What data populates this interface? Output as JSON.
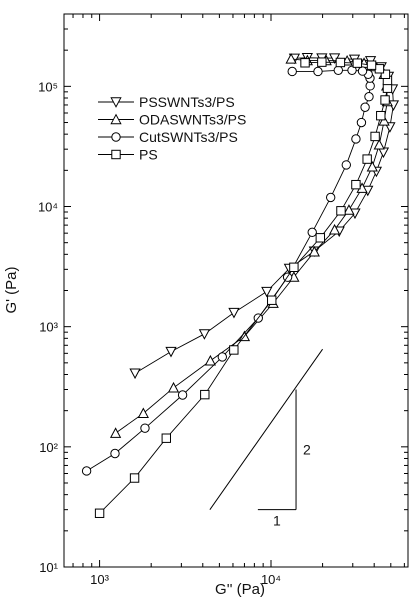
{
  "chart_data": {
    "type": "scatter",
    "xlabel": "G'' (Pa)",
    "ylabel": "G' (Pa)",
    "xscale": "log",
    "yscale": "log",
    "xlim": [
      620,
      63000
    ],
    "ylim": [
      10,
      400000
    ],
    "x_ticks": [
      {
        "value": 1000,
        "label": "10³"
      },
      {
        "value": 10000,
        "label": "10⁴"
      }
    ],
    "y_ticks": [
      {
        "value": 10,
        "label": "10¹"
      },
      {
        "value": 100,
        "label": "10²"
      },
      {
        "value": 1000,
        "label": "10³"
      },
      {
        "value": 10000,
        "label": "10⁴"
      },
      {
        "value": 100000,
        "label": "10⁵"
      }
    ],
    "legend_position": "top-left",
    "grid": false,
    "series": [
      {
        "name": "PSSWNTs3/PS",
        "marker": "triangle-down",
        "points": [
          [
            1610,
            410
          ],
          [
            2610,
            620
          ],
          [
            4090,
            870
          ],
          [
            6080,
            1310
          ],
          [
            9450,
            1960
          ],
          [
            12800,
            3050
          ],
          [
            17900,
            4250
          ],
          [
            25000,
            6230
          ],
          [
            30900,
            8790
          ],
          [
            36700,
            13600
          ],
          [
            41200,
            19600
          ],
          [
            45300,
            28300
          ],
          [
            49400,
            45900
          ],
          [
            51800,
            69800
          ],
          [
            51200,
            95000
          ],
          [
            48500,
            121000
          ],
          [
            44000,
            145000
          ],
          [
            38100,
            163000
          ],
          [
            30700,
            168000
          ],
          [
            23500,
            172000
          ],
          [
            19800,
            172000
          ],
          [
            16300,
            173000
          ],
          [
            13700,
            171000
          ]
        ]
      },
      {
        "name": "ODASWNTs3/PS",
        "marker": "triangle-up",
        "points": [
          [
            1240,
            130
          ],
          [
            1800,
            190
          ],
          [
            2700,
            310
          ],
          [
            4430,
            520
          ],
          [
            7000,
            830
          ],
          [
            10300,
            1570
          ],
          [
            13600,
            2590
          ],
          [
            17900,
            4200
          ],
          [
            23500,
            6400
          ],
          [
            28500,
            9350
          ],
          [
            34000,
            14200
          ],
          [
            39000,
            21400
          ],
          [
            42800,
            32600
          ],
          [
            45700,
            51600
          ],
          [
            47700,
            74700
          ],
          [
            47300,
            101000
          ],
          [
            45700,
            126000
          ],
          [
            40700,
            146000
          ],
          [
            34900,
            156000
          ],
          [
            27800,
            163000
          ],
          [
            21000,
            164000
          ],
          [
            16300,
            164000
          ],
          [
            13100,
            169000
          ]
        ]
      },
      {
        "name": "CutSWNTs3/PS",
        "marker": "circle",
        "points": [
          [
            840,
            63
          ],
          [
            1230,
            88
          ],
          [
            1840,
            143
          ],
          [
            3050,
            270
          ],
          [
            5200,
            560
          ],
          [
            8430,
            1180
          ],
          [
            12500,
            2580
          ],
          [
            17400,
            6100
          ],
          [
            22300,
            11900
          ],
          [
            27500,
            22200
          ],
          [
            31300,
            36500
          ],
          [
            33700,
            50000
          ],
          [
            35400,
            67000
          ],
          [
            37300,
            82000
          ],
          [
            37900,
            101000
          ],
          [
            37800,
            117000
          ],
          [
            36900,
            126000
          ],
          [
            34200,
            134000
          ],
          [
            29700,
            136000
          ],
          [
            24700,
            136000
          ],
          [
            18800,
            133000
          ],
          [
            13300,
            133000
          ]
        ]
      },
      {
        "name": "PS",
        "marker": "square",
        "points": [
          [
            1000,
            28
          ],
          [
            1600,
            55
          ],
          [
            2450,
            118
          ],
          [
            4110,
            272
          ],
          [
            6070,
            640
          ],
          [
            10100,
            1660
          ],
          [
            13600,
            3120
          ],
          [
            19400,
            5490
          ],
          [
            25600,
            9210
          ],
          [
            31300,
            15200
          ],
          [
            36400,
            24800
          ],
          [
            40500,
            38300
          ],
          [
            43700,
            57000
          ],
          [
            46300,
            77000
          ],
          [
            47800,
            96500
          ],
          [
            47800,
            112000
          ],
          [
            46500,
            126000
          ],
          [
            42900,
            140000
          ],
          [
            38600,
            150000
          ],
          [
            31900,
            156000
          ],
          [
            25400,
            158000
          ],
          [
            19800,
            159000
          ],
          [
            15800,
            157000
          ]
        ]
      }
    ],
    "slope_annotation": {
      "rise_label": "2",
      "run_label": "1"
    }
  }
}
